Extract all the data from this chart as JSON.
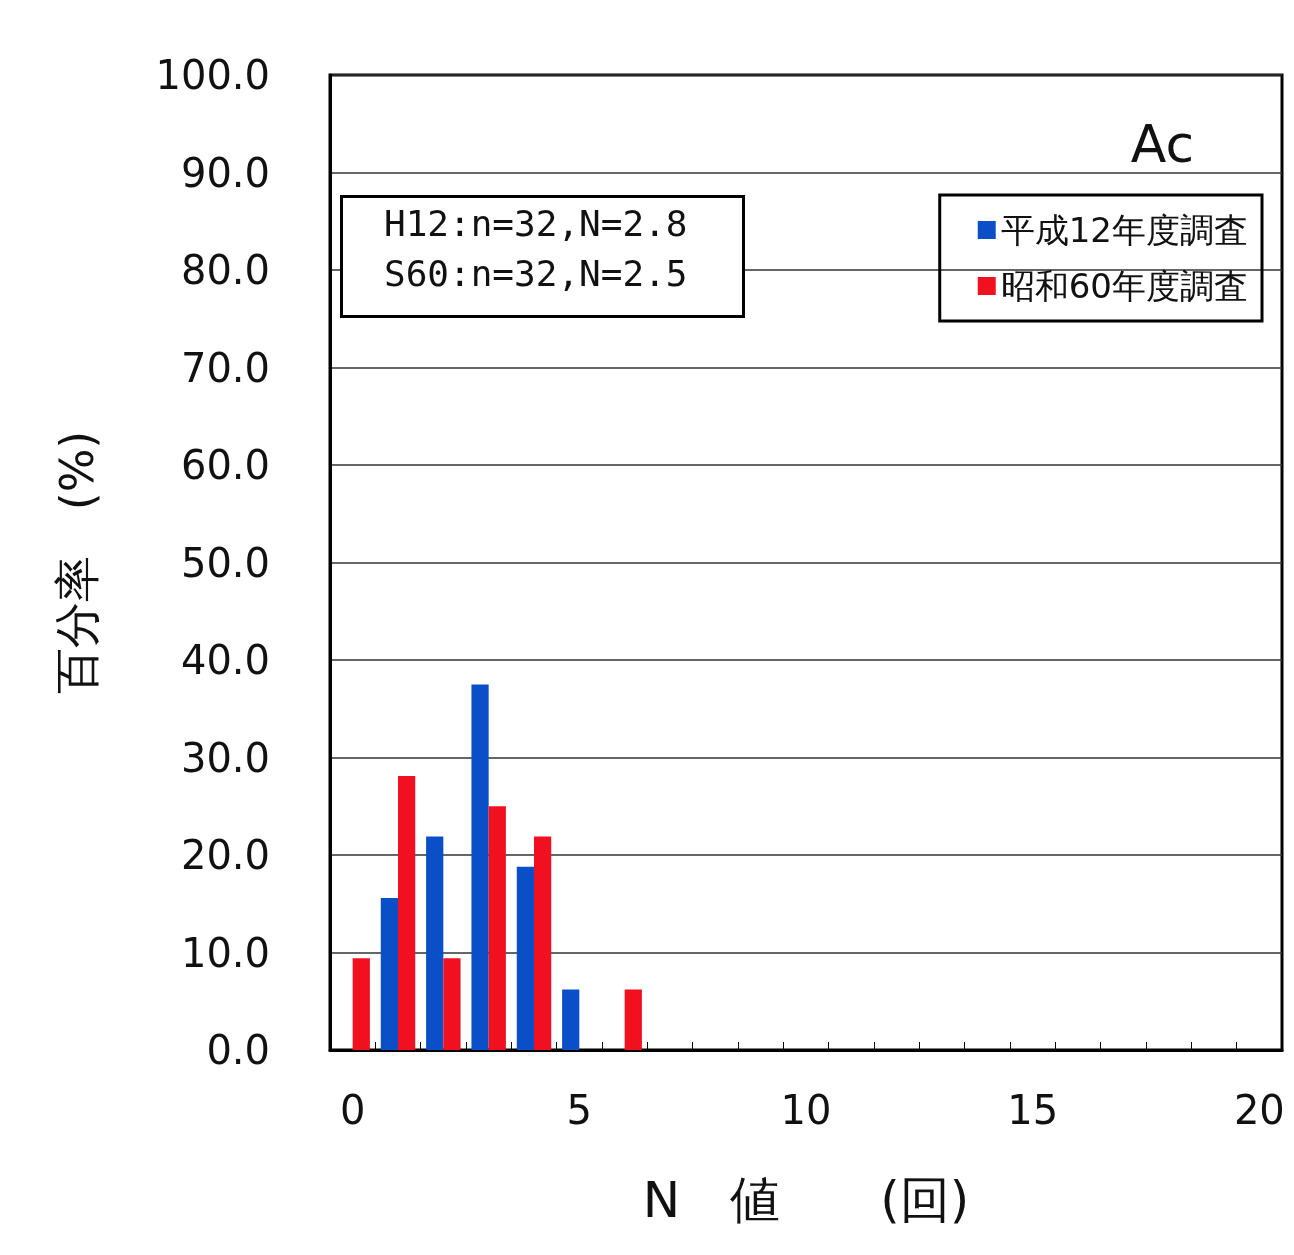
{
  "chart_data": {
    "type": "bar",
    "categories": [
      "0",
      null,
      null,
      null,
      null,
      "5",
      null,
      null,
      null,
      null,
      "10",
      null,
      null,
      null,
      null,
      "15",
      null,
      null,
      null,
      null,
      "20"
    ],
    "series": [
      {
        "name": "平成12年度調査",
        "color": "#0a4fc8",
        "values": [
          0,
          15.6,
          21.9,
          37.5,
          18.8,
          6.2,
          0,
          0,
          0,
          0,
          0,
          0,
          0,
          0,
          0,
          0,
          0,
          0,
          0,
          0,
          0
        ]
      },
      {
        "name": "昭和60年度調査",
        "color": "#f01020",
        "values": [
          9.4,
          28.1,
          9.4,
          25.0,
          21.9,
          0,
          6.2,
          0,
          0,
          0,
          0,
          0,
          0,
          0,
          0,
          0,
          0,
          0,
          0,
          0,
          0
        ]
      }
    ],
    "xlabel": "N　値　　(回)",
    "ylabel": "百分率　(%)",
    "ylim": [
      0,
      100
    ],
    "yticks": [
      {
        "value": 0,
        "label": "0.0"
      },
      {
        "value": 10,
        "label": "10.0"
      },
      {
        "value": 20,
        "label": "20.0"
      },
      {
        "value": 30,
        "label": "30.0"
      },
      {
        "value": 40,
        "label": "40.0"
      },
      {
        "value": 50,
        "label": "50.0"
      },
      {
        "value": 60,
        "label": "60.0"
      },
      {
        "value": 70,
        "label": "70.0"
      },
      {
        "value": 80,
        "label": "80.0"
      },
      {
        "value": 90,
        "label": "90.0"
      },
      {
        "value": 100,
        "label": "100.0"
      }
    ],
    "annotations": [
      "Ac",
      "H12:n=32,N=2.8",
      "S60:n=32,N=2.5"
    ],
    "grid": "y",
    "legend": "top right"
  }
}
